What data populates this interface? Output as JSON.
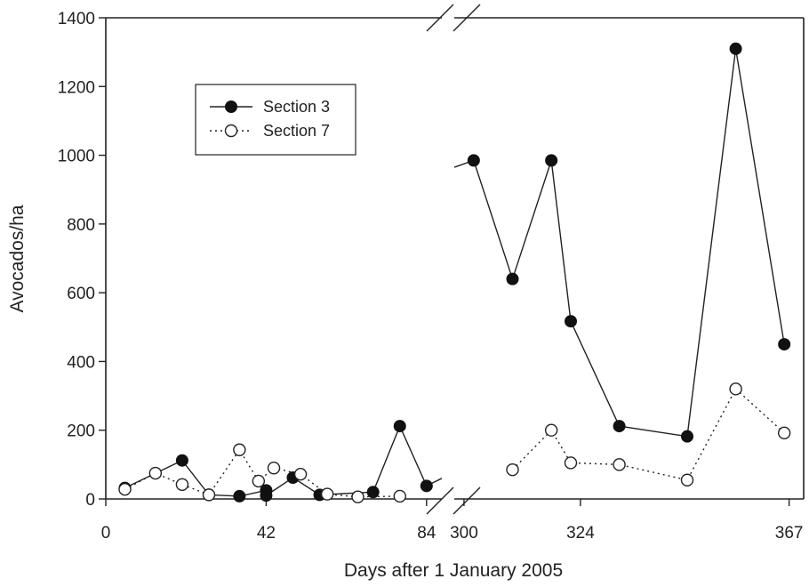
{
  "chart_data": {
    "type": "line",
    "title": "",
    "xlabel": "Days after 1 January 2005",
    "ylabel": "Avocados/ha",
    "ylim": [
      0,
      1400
    ],
    "yticks": [
      0,
      200,
      400,
      600,
      800,
      1000,
      1200,
      1400
    ],
    "x_segments": [
      {
        "range": [
          0,
          88
        ],
        "ticks": [
          0,
          42,
          84
        ]
      },
      {
        "range": [
          298,
          370
        ],
        "ticks": [
          300,
          324,
          367
        ]
      }
    ],
    "axis_break": true,
    "legend": {
      "position": "top-left"
    },
    "series": [
      {
        "name": "Section 3",
        "marker": "filled-circle",
        "line": "solid",
        "segments": [
          {
            "x": [
              5,
              20,
              27,
              35,
              42,
              42,
              49,
              56,
              70,
              77,
              84,
              88
            ],
            "y": [
              32,
              112,
              12,
              8,
              25,
              10,
              62,
              12,
              20,
              212,
              38,
              60
            ]
          },
          {
            "x": [
              298,
              302,
              310,
              318,
              322,
              332,
              346,
              356,
              366
            ],
            "y": [
              965,
              985,
              640,
              985,
              517,
              212,
              182,
              1310,
              450
            ]
          }
        ]
      },
      {
        "name": "Section 7",
        "marker": "open-circle",
        "line": "dotted",
        "segments": [
          {
            "x": [
              5,
              13,
              20,
              27,
              35,
              40,
              44,
              51,
              58,
              66,
              77
            ],
            "y": [
              28,
              75,
              42,
              12,
              143,
              52,
              90,
              72,
              14,
              6,
              8
            ]
          },
          {
            "x": [
              310,
              318,
              322,
              332,
              346,
              356,
              366
            ],
            "y": [
              85,
              200,
              105,
              100,
              55,
              320,
              192
            ]
          }
        ]
      }
    ]
  }
}
